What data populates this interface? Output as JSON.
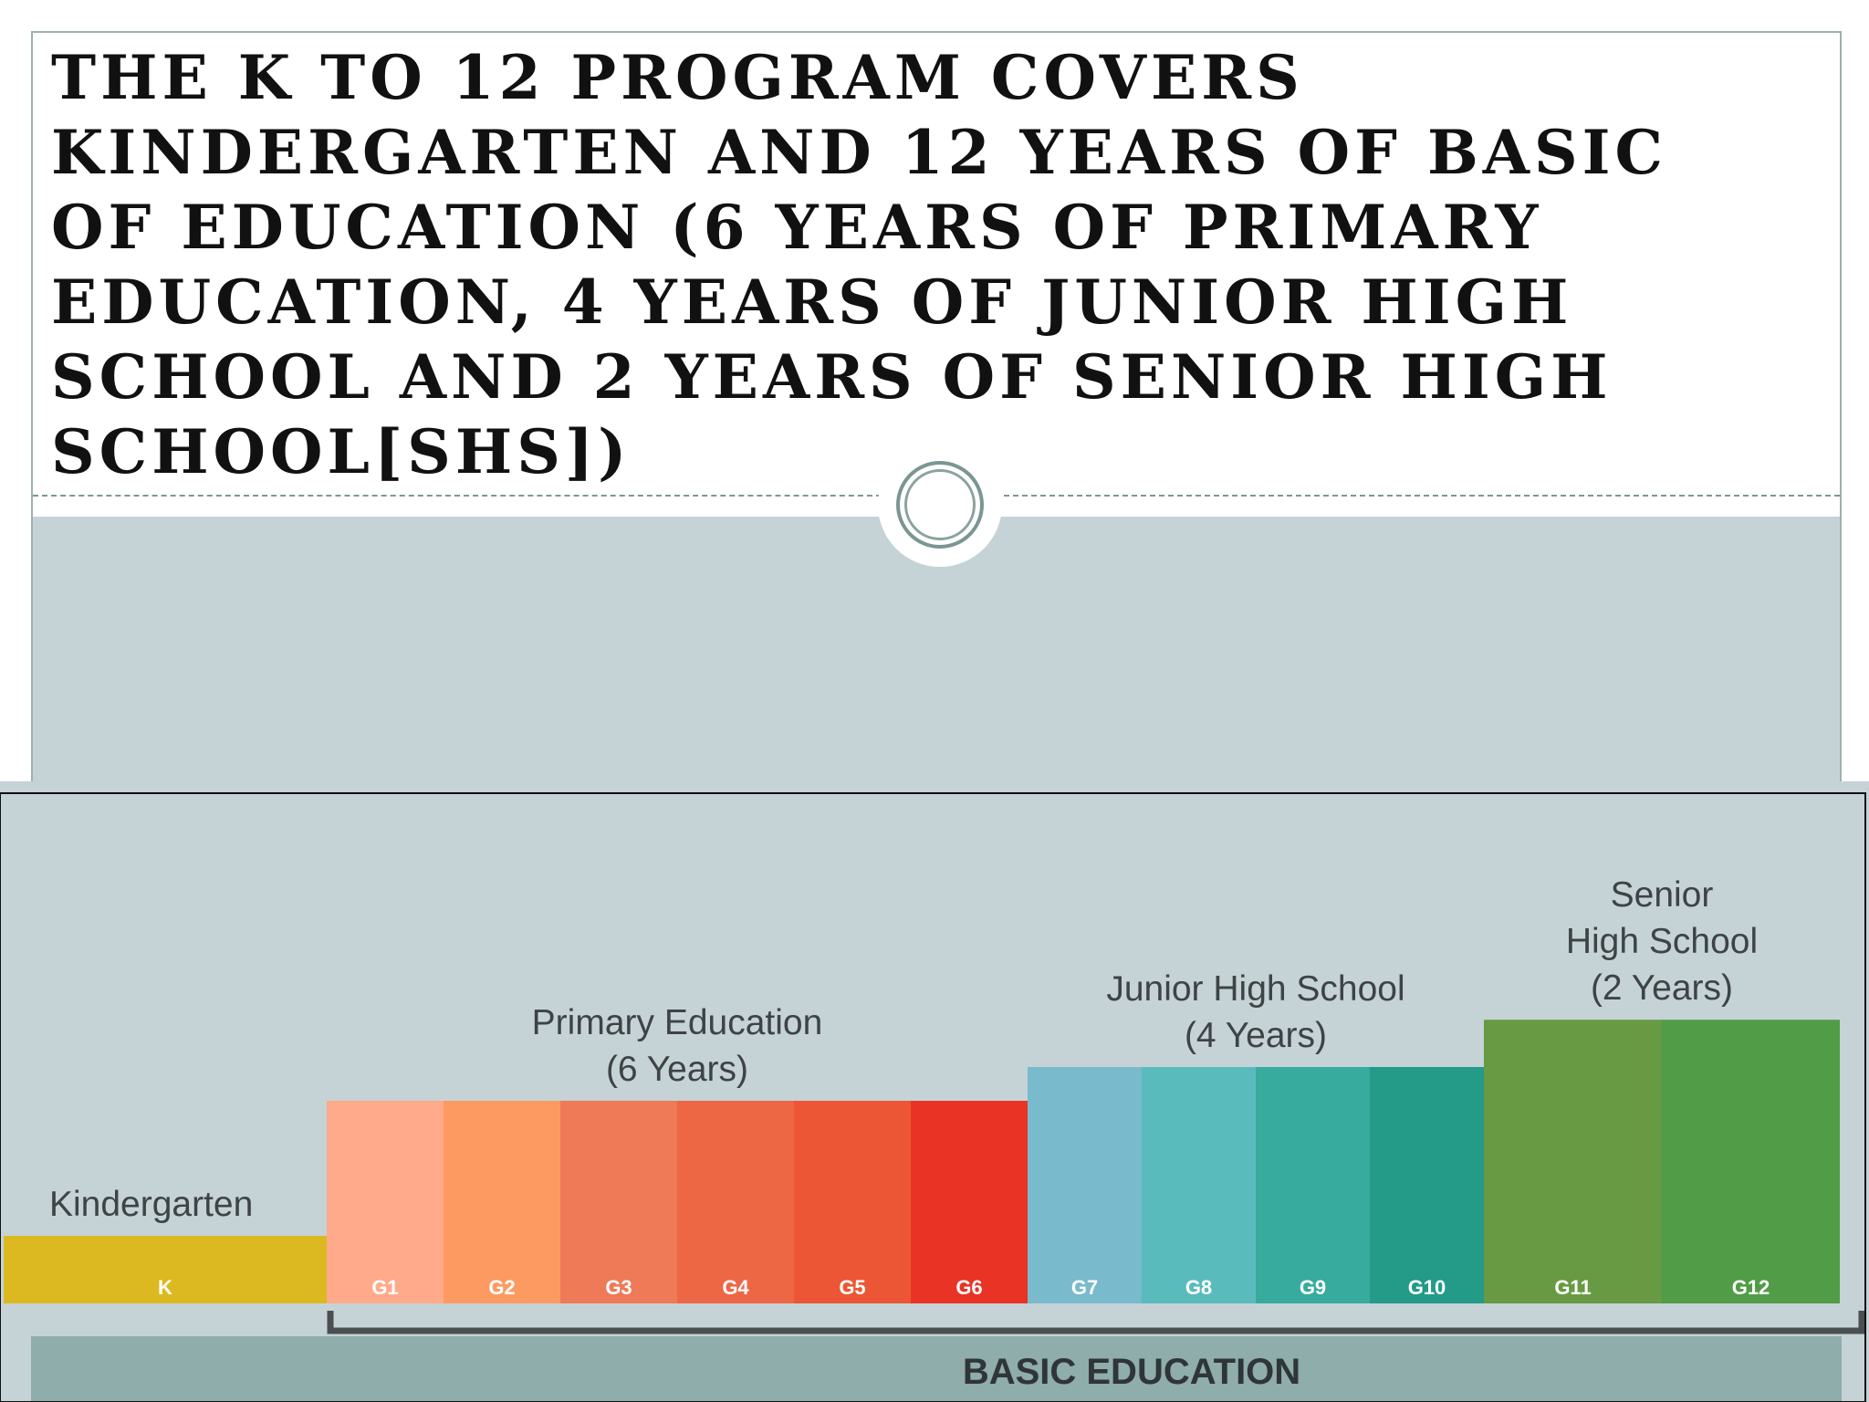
{
  "slide": {
    "title": "The K to 12 Program covers Kindergarten and 12 years of basic of education (6 years of primary education, 4 years of Junior High School and 2 years of Senior High School[SHS])"
  },
  "diagram": {
    "basic_education_label": "BASIC EDUCATION",
    "stages": [
      {
        "id": "kindergarten",
        "label_lines": [
          "Kindergarten"
        ],
        "level": 1,
        "grades": [
          {
            "label": "K",
            "color": "#dcb920"
          }
        ]
      },
      {
        "id": "primary",
        "label_lines": [
          "Primary Education",
          "(6 Years)"
        ],
        "level": 3,
        "grades": [
          {
            "label": "G1",
            "color": "#ffaa8a"
          },
          {
            "label": "G2",
            "color": "#fd9a62"
          },
          {
            "label": "G3",
            "color": "#ee7a57"
          },
          {
            "label": "G4",
            "color": "#ee6744"
          },
          {
            "label": "G5",
            "color": "#ed5634"
          },
          {
            "label": "G6",
            "color": "#e93325"
          }
        ]
      },
      {
        "id": "junior-high",
        "label_lines": [
          "Junior High School",
          "(4 Years)"
        ],
        "level": 3.5,
        "grades": [
          {
            "label": "G7",
            "color": "#79bacc"
          },
          {
            "label": "G8",
            "color": "#5abbbc"
          },
          {
            "label": "G9",
            "color": "#36ab9e"
          },
          {
            "label": "G10",
            "color": "#249a89"
          }
        ]
      },
      {
        "id": "senior-high",
        "label_lines": [
          "Senior",
          "High School",
          "(2 Years)"
        ],
        "level": 4.2,
        "grades": [
          {
            "label": "G11",
            "color": "#679a42"
          },
          {
            "label": "G12",
            "color": "#519c46"
          }
        ]
      }
    ],
    "colors": {
      "panel_bg": "#c5d3d7",
      "basic_bar": "#8eadab",
      "bracket": "#4a4f52"
    }
  }
}
